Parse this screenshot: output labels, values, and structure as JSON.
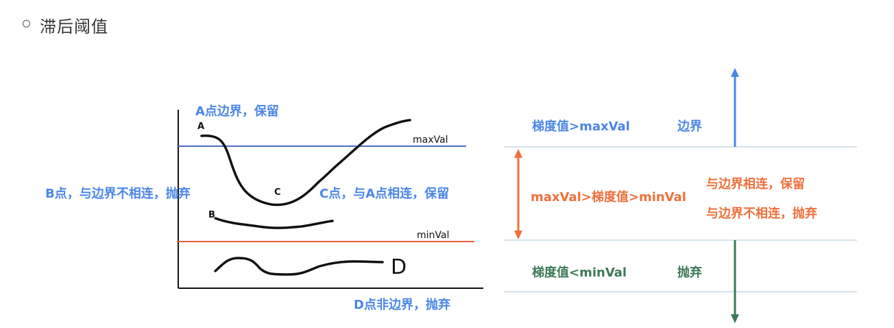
{
  "section": {
    "title": "滞后阈值"
  },
  "left_diagram": {
    "threshold_max_label": "maxVal",
    "threshold_min_label": "minVal",
    "point_a": "A",
    "point_b": "B",
    "point_c": "C",
    "point_d": "D",
    "caption_a": "A点边界，保留",
    "caption_b": "B点，与边界不相连，抛弃",
    "caption_c": "C点，与A点相连，保留",
    "caption_d": "D点非边界，抛弃",
    "colors": {
      "max_line": "#4a6fc4",
      "min_line": "#e0603a",
      "curve": "#111111"
    }
  },
  "right_diagram": {
    "top_condition": "梯度值>maxVal",
    "top_result": "边界",
    "mid_condition": "maxVal>梯度值>minVal",
    "mid_result_1": "与边界相连，保留",
    "mid_result_2": "与边界不相连，抛弃",
    "bottom_condition": "梯度值<minVal",
    "bottom_result": "抛弃",
    "colors": {
      "up_arrow": "#4a86e8",
      "mid_arrow": "#f06f3a",
      "down_arrow": "#3b7a57",
      "rule": "#c8dbe6"
    }
  }
}
